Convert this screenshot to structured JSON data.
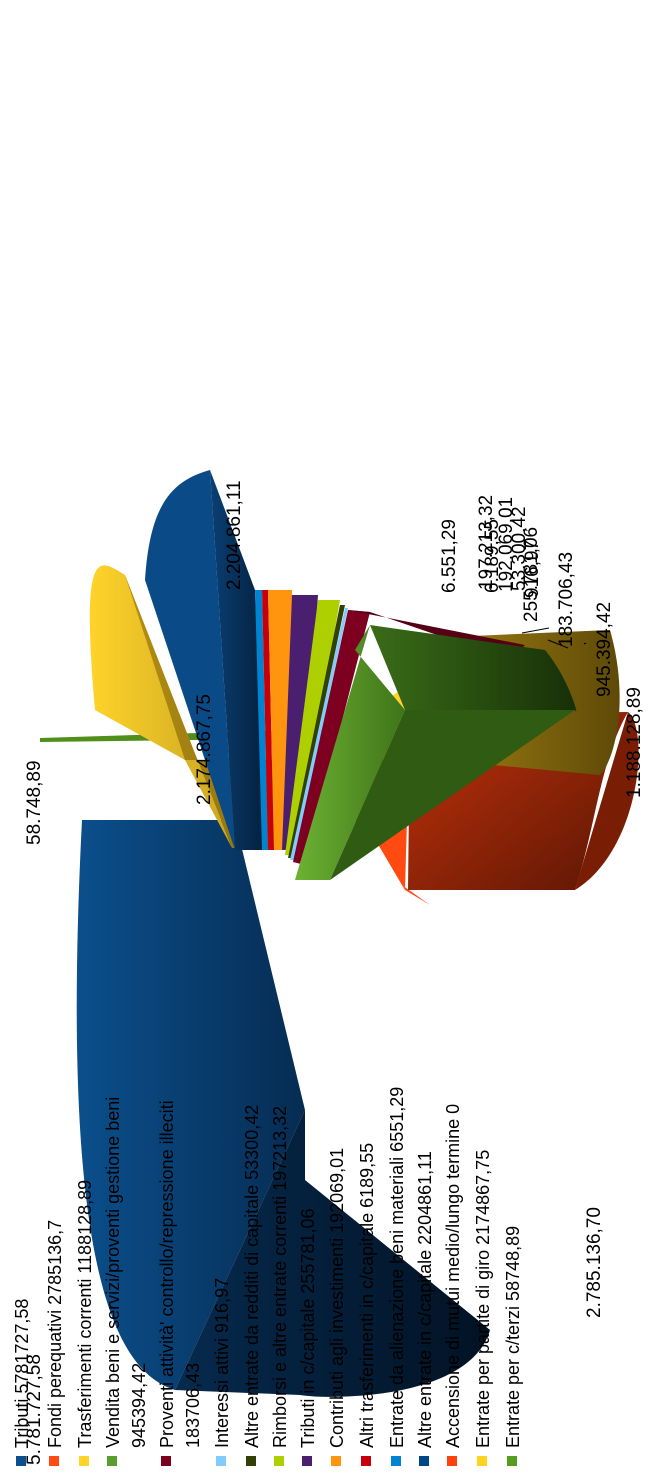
{
  "chart_data": {
    "type": "pie",
    "style": "3d-exploded",
    "orientation": "rotated-90-ccw",
    "legend_position": "right",
    "slices": [
      {
        "legend": "Tributi 5781727,58",
        "value": 5781727.58,
        "label": "5.781.727,58",
        "color": "#0b4f8c"
      },
      {
        "legend": "Fondi perequativi 2785136,7",
        "value": 2785136.7,
        "label": "2.785.136,70",
        "color": "#ff4a12"
      },
      {
        "legend": "Trasferimenti correnti 1188128,89",
        "value": 1188128.89,
        "label": "1.188.128,89",
        "color": "#ffd32a"
      },
      {
        "legend": [
          "Vendita beni e servizi/proventi gestione beni",
          "945394,42"
        ],
        "value": 945394.42,
        "label": "945.394,42",
        "color": "#5a9e2c"
      },
      {
        "legend": [
          "Proventi attività' controllo/repressione illeciti",
          "183706,43"
        ],
        "value": 183706.43,
        "label": "183.706,43",
        "color": "#7d0021"
      },
      {
        "legend": "Interessi attivi 916,97",
        "value": 916.97,
        "label": "916,97",
        "color": "#83caff"
      },
      {
        "legend": "Altre entrate da redditi di capitale 53300,42",
        "value": 53300.42,
        "label": "53.300,42",
        "color": "#314004"
      },
      {
        "legend": "Rimborsi e altre entrate correnti 197213,32",
        "value": 197213.32,
        "label": "197.213,32",
        "color": "#aecf00"
      },
      {
        "legend": "Tributi in c/capitale 255781,06",
        "value": 255781.06,
        "label": "255.781,06",
        "color": "#4b1f6f"
      },
      {
        "legend": "Contributi agli investimenti 192069,01",
        "value": 192069.01,
        "label": "192.069,01",
        "color": "#ff950e"
      },
      {
        "legend": "Altri trasferimenti in c/capitale 6189,55",
        "value": 6189.55,
        "label": "6.189,55",
        "color": "#c5000b"
      },
      {
        "legend": "Entrate da alienazione beni materiali  6551,29",
        "value": 6551.29,
        "label": "6.551,29",
        "color": "#0084d1"
      },
      {
        "legend": "Altre entrate in c/capitale 2204861,11",
        "value": 2204861.11,
        "label": "2.204.861,11",
        "color": "#004586"
      },
      {
        "legend": "Accensione di mutui medio/lungo termine 0",
        "value": 0,
        "label": "",
        "color": "#ff420e"
      },
      {
        "legend": "Entrate per partite di giro 2174867,75",
        "value": 2174867.75,
        "label": "2.174.867,75",
        "color": "#ffd320"
      },
      {
        "legend": "Entrate per c/terzi 58748,89",
        "value": 58748.89,
        "label": "58.748,89",
        "color": "#579d1c"
      }
    ]
  }
}
